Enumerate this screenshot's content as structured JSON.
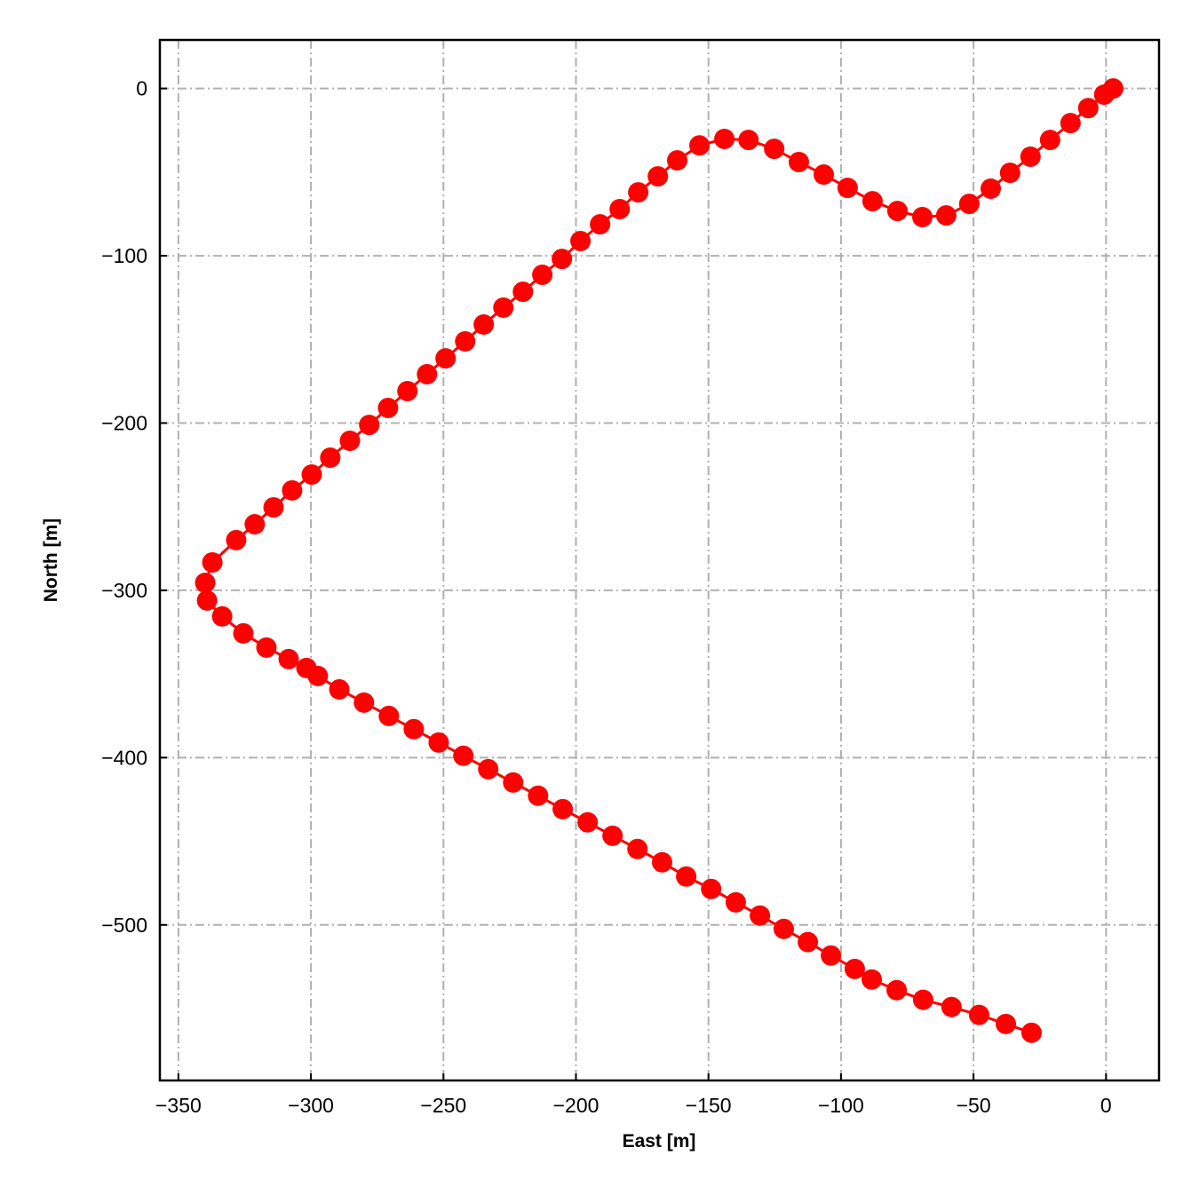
{
  "chart_data": {
    "type": "line",
    "color": "#ff0000",
    "grid": true,
    "x_label": "East [m]",
    "y_label": "North [m]",
    "xlim": [
      -357,
      20
    ],
    "ylim": [
      -593,
      29
    ],
    "xticks": [
      {
        "value": -350,
        "label": "−350"
      },
      {
        "value": -300,
        "label": "−300"
      },
      {
        "value": -250,
        "label": "−250"
      },
      {
        "value": -200,
        "label": "−200"
      },
      {
        "value": -150,
        "label": "−150"
      },
      {
        "value": -100,
        "label": "−100"
      },
      {
        "value": -50,
        "label": "−50"
      },
      0
    ],
    "yticks": [
      {
        "value": -500,
        "label": "−500"
      },
      {
        "value": -400,
        "label": "−400"
      },
      {
        "value": -300,
        "label": "−300"
      },
      {
        "value": -200,
        "label": "−200"
      },
      {
        "value": -100,
        "label": "−100"
      },
      0
    ],
    "x": [
      2.7,
      -0.7,
      -6.7,
      -13.4,
      -21.1,
      -28.5,
      -36.2,
      -43.5,
      -51.6,
      -60.3,
      -69.3,
      -78.7,
      -88.1,
      -97.5,
      -106.5,
      -115.9,
      -125.2,
      -134.9,
      -144.0,
      -153.4,
      -161.8,
      -169.1,
      -176.5,
      -183.5,
      -190.9,
      -198.3,
      -205.3,
      -212.7,
      -220.0,
      -227.4,
      -234.8,
      -241.8,
      -249.2,
      -256.2,
      -263.6,
      -270.9,
      -278.0,
      -285.3,
      -292.7,
      -299.7,
      -307.1,
      -314.1,
      -321.2,
      -328.2,
      -337.2,
      -339.9,
      -339.2,
      -333.5,
      -325.5,
      -316.8,
      -308.4,
      -301.7,
      -297.4,
      -289.3,
      -280.0,
      -270.6,
      -261.2,
      -251.8,
      -242.5,
      -233.1,
      -223.7,
      -214.3,
      -205.0,
      -195.6,
      -186.2,
      -176.8,
      -167.5,
      -158.4,
      -149.0,
      -139.7,
      -130.6,
      -121.6,
      -112.5,
      -103.8,
      -94.8,
      -88.4,
      -79.0,
      -69.0,
      -58.3,
      -47.9,
      -37.8,
      -28.1
    ],
    "values": [
      0.0,
      -3.7,
      -11.7,
      -20.7,
      -30.8,
      -40.8,
      -50.4,
      -59.9,
      -69.0,
      -75.9,
      -76.9,
      -73.2,
      -67.4,
      -59.4,
      -51.5,
      -44.0,
      -36.1,
      -30.8,
      -30.2,
      -34.0,
      -43.0,
      -52.5,
      -62.1,
      -72.1,
      -81.2,
      -91.2,
      -101.9,
      -111.4,
      -121.5,
      -131.0,
      -141.1,
      -151.2,
      -161.3,
      -170.8,
      -180.9,
      -191.0,
      -201.1,
      -210.6,
      -220.7,
      -230.8,
      -240.3,
      -250.4,
      -260.5,
      -270.0,
      -283.3,
      -295.5,
      -306.1,
      -315.6,
      -325.7,
      -334.2,
      -341.1,
      -346.4,
      -351.2,
      -359.2,
      -367.1,
      -375.1,
      -383.0,
      -391.0,
      -398.9,
      -406.9,
      -414.9,
      -422.8,
      -430.8,
      -438.7,
      -446.7,
      -454.6,
      -462.6,
      -471.1,
      -478.5,
      -486.5,
      -494.4,
      -502.4,
      -510.3,
      -518.3,
      -526.3,
      -532.6,
      -539.0,
      -544.8,
      -549.1,
      -553.8,
      -559.2,
      -564.5
    ]
  }
}
